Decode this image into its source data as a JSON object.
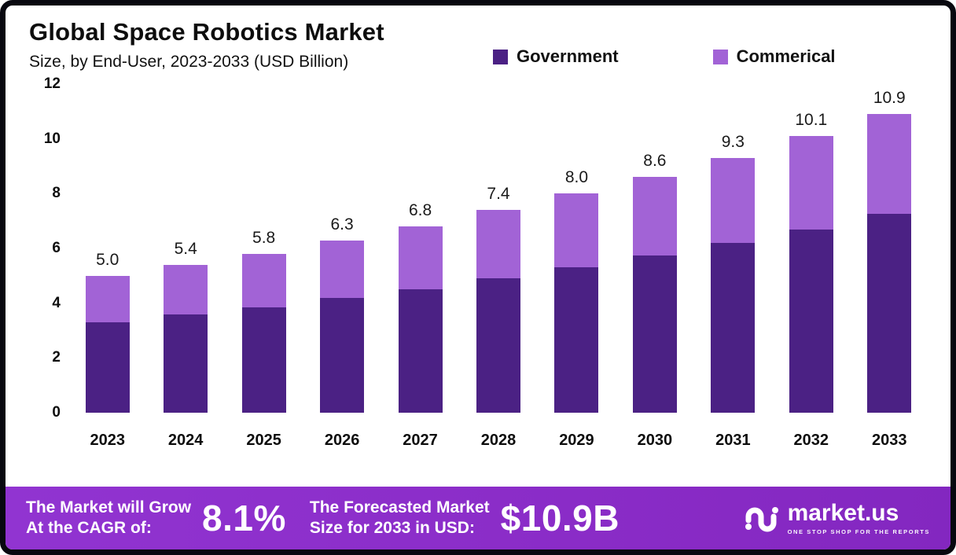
{
  "header": {
    "title": "Global Space Robotics Market",
    "subtitle": "Size, by End-User, 2023-2033 (USD Billion)"
  },
  "legend": [
    {
      "label": "Government",
      "color": "#4b2184"
    },
    {
      "label": "Commerical",
      "color": "#a263d6"
    }
  ],
  "chart_data": {
    "type": "bar",
    "stacked": true,
    "title": "Global Space Robotics Market Size, by End-User, 2023-2033 (USD Billion)",
    "categories": [
      "2023",
      "2024",
      "2025",
      "2026",
      "2027",
      "2028",
      "2029",
      "2030",
      "2031",
      "2032",
      "2033"
    ],
    "series": [
      {
        "name": "Government",
        "color": "#4b2184",
        "values": [
          3.3,
          3.6,
          3.85,
          4.2,
          4.5,
          4.9,
          5.3,
          5.75,
          6.2,
          6.7,
          7.25
        ]
      },
      {
        "name": "Commerical",
        "color": "#a263d6",
        "values": [
          1.7,
          1.8,
          1.95,
          2.1,
          2.3,
          2.5,
          2.7,
          2.85,
          3.1,
          3.4,
          3.65
        ]
      }
    ],
    "totals": [
      5.0,
      5.4,
      5.8,
      6.3,
      6.8,
      7.4,
      8.0,
      8.6,
      9.3,
      10.1,
      10.9
    ],
    "total_labels": [
      "5.0",
      "5.4",
      "5.8",
      "6.3",
      "6.8",
      "7.4",
      "8.0",
      "8.6",
      "9.3",
      "10.1",
      "10.9"
    ],
    "xlabel": "",
    "ylabel": "",
    "ylim": [
      0,
      12
    ],
    "yticks": [
      0,
      2,
      4,
      6,
      8,
      10,
      12
    ],
    "grid": false,
    "legend_position": "top-right"
  },
  "footer": {
    "cagr_label_line1": "The Market will Grow",
    "cagr_label_line2": "At the CAGR of:",
    "cagr_value": "8.1%",
    "forecast_label_line1": "The Forecasted Market",
    "forecast_label_line2": "Size for 2033 in USD:",
    "forecast_value": "$10.9B",
    "brand": "market.us",
    "brand_tagline": "ONE STOP SHOP FOR THE REPORTS"
  },
  "colors": {
    "government": "#4b2184",
    "commercial": "#a263d6",
    "footer_bg": "#8a2cc7",
    "frame_border": "#08080f"
  }
}
